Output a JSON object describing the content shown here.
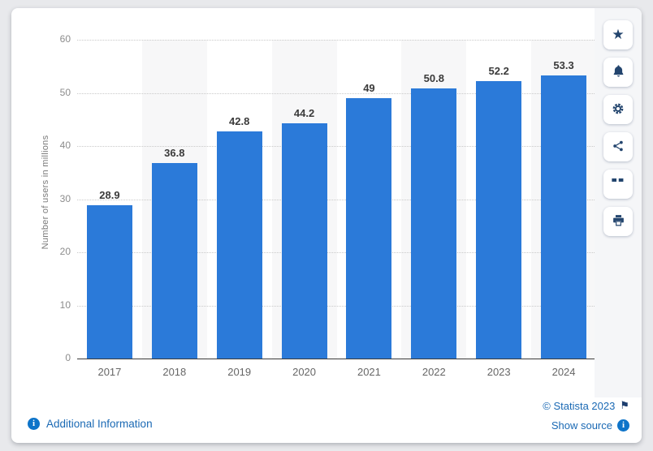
{
  "chart_data": {
    "type": "bar",
    "categories": [
      "2017",
      "2018",
      "2019",
      "2020",
      "2021",
      "2022",
      "2023",
      "2024"
    ],
    "values": [
      28.9,
      36.8,
      42.8,
      44.2,
      49,
      50.8,
      52.2,
      53.3
    ],
    "title": "",
    "xlabel": "",
    "ylabel": "Number of users in millions",
    "ylim": [
      0,
      60
    ],
    "yticks": [
      0,
      10,
      20,
      30,
      40,
      50,
      60
    ],
    "grid": "horizontal-dotted",
    "legend": "none",
    "bar_color": "#2b7ad9",
    "shaded_column_color": "#f7f7f8"
  },
  "toolbar": {
    "icon_color": "#23456e",
    "items": [
      {
        "icon": "star-icon"
      },
      {
        "icon": "bell-icon"
      },
      {
        "icon": "gear-icon"
      },
      {
        "icon": "share-icon"
      },
      {
        "icon": "quote-icon"
      },
      {
        "icon": "print-icon"
      }
    ]
  },
  "footer": {
    "additional_information": "Additional Information",
    "copyright": "© Statista 2023",
    "show_source": "Show source",
    "link_color": "#1a69b4"
  }
}
